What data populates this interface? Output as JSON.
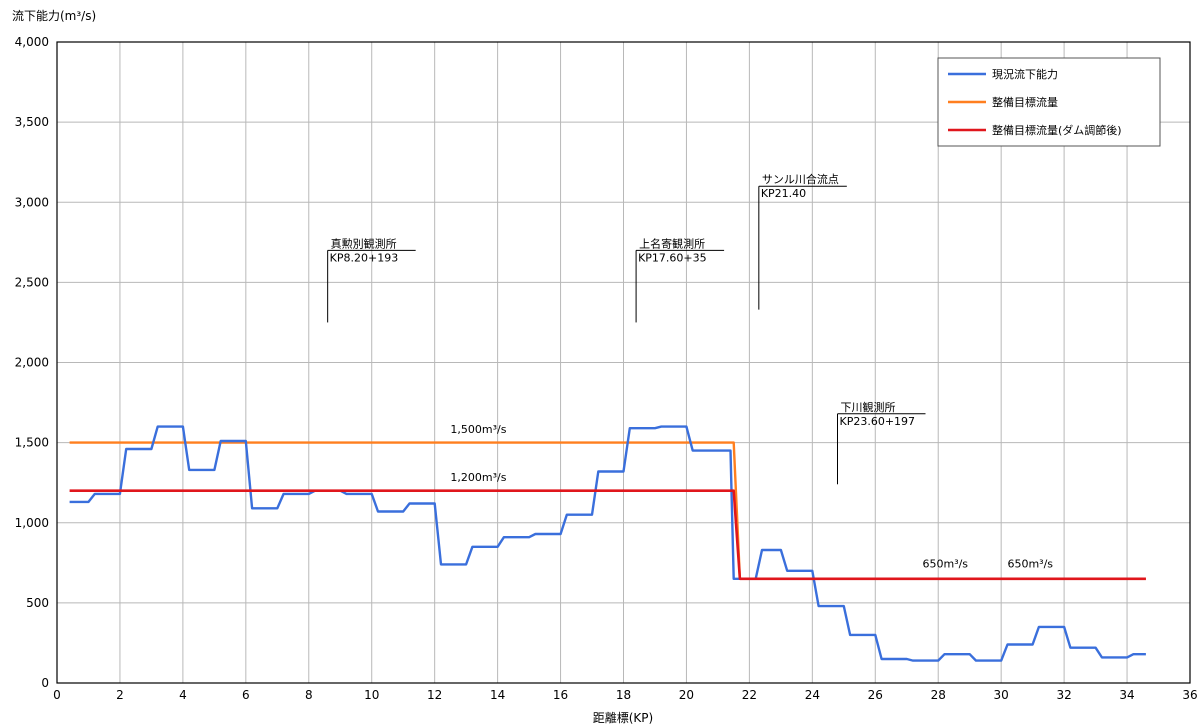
{
  "chart_data": {
    "type": "line",
    "ylabel": "流下能力(m³/s)",
    "xlabel": "距離標(KP)",
    "xlim": [
      0,
      36
    ],
    "ylim": [
      0,
      4000
    ],
    "x_ticks": [
      0,
      2,
      4,
      6,
      8,
      10,
      12,
      14,
      16,
      18,
      20,
      22,
      24,
      26,
      28,
      30,
      32,
      34,
      36
    ],
    "y_ticks": [
      0,
      500,
      1000,
      1500,
      2000,
      2500,
      3000,
      3500,
      4000
    ],
    "y_tick_labels": [
      "0",
      "500",
      "1,000",
      "1,500",
      "2,000",
      "2,500",
      "3,000",
      "3,500",
      "4,000"
    ],
    "grid": true,
    "legend": "top-right",
    "series": [
      {
        "name": "現況流下能力",
        "color": "#3a6fdc",
        "x": [
          0.4,
          1.0,
          1.2,
          2.0,
          2.2,
          3.0,
          3.2,
          4.0,
          4.2,
          5.0,
          5.2,
          6.0,
          6.2,
          7.0,
          7.2,
          8.0,
          8.2,
          9.0,
          9.2,
          10.0,
          10.2,
          11.0,
          11.2,
          12.0,
          12.2,
          13.0,
          13.2,
          14.0,
          14.2,
          15.0,
          15.2,
          16.0,
          16.2,
          17.0,
          17.2,
          18.0,
          18.2,
          19.0,
          19.2,
          20.0,
          20.2,
          21.0,
          21.4,
          21.5,
          21.7,
          22.2,
          22.4,
          23.0,
          23.2,
          24.0,
          24.2,
          25.0,
          25.2,
          26.0,
          26.2,
          27.0,
          27.2,
          28.0,
          28.2,
          29.0,
          29.2,
          30.0,
          30.2,
          31.0,
          31.2,
          32.0,
          32.2,
          33.0,
          33.2,
          34.0,
          34.2,
          34.6
        ],
        "y": [
          1130,
          1130,
          1180,
          1180,
          1460,
          1460,
          1600,
          1600,
          1330,
          1330,
          1510,
          1510,
          1090,
          1090,
          1180,
          1180,
          1200,
          1200,
          1180,
          1180,
          1070,
          1070,
          1120,
          1120,
          740,
          740,
          850,
          850,
          910,
          910,
          930,
          930,
          1050,
          1050,
          1320,
          1320,
          1590,
          1590,
          1600,
          1600,
          1450,
          1450,
          1450,
          650,
          650,
          650,
          830,
          830,
          700,
          700,
          480,
          480,
          300,
          300,
          150,
          150,
          140,
          140,
          180,
          180,
          140,
          140,
          240,
          240,
          350,
          350,
          220,
          220,
          160,
          160,
          180,
          180
        ]
      },
      {
        "name": "整備目標流量",
        "color": "#ff7f1f",
        "x": [
          0.4,
          21.5,
          21.7,
          34.6
        ],
        "y": [
          1500,
          1500,
          650,
          650
        ]
      },
      {
        "name": "整備目標流量(ダム調節後)",
        "color": "#e0161c",
        "x": [
          0.4,
          21.5,
          21.7,
          34.6
        ],
        "y": [
          1200,
          1200,
          650,
          650
        ]
      }
    ],
    "annotations": [
      {
        "line1": "真勲別観測所",
        "line2": "KP8.20+193",
        "x": 8.6,
        "y_top": 2700,
        "y_bottom": 2250
      },
      {
        "line1": "上名寄観測所",
        "line2": "KP17.60+35",
        "x": 18.4,
        "y_top": 2700,
        "y_bottom": 2250
      },
      {
        "line1": "サンル川合流点",
        "line2": "KP21.40",
        "x": 22.3,
        "y_top": 3100,
        "y_bottom": 2330
      },
      {
        "line1": "下川観測所",
        "line2": "KP23.60+197",
        "x": 24.8,
        "y_top": 1680,
        "y_bottom": 1240
      }
    ],
    "value_labels": [
      {
        "text": "1,500m³/s",
        "x": 12.5,
        "y": 1560
      },
      {
        "text": "1,200m³/s",
        "x": 12.5,
        "y": 1260
      },
      {
        "text": "650m³/s",
        "x": 27.5,
        "y": 720
      },
      {
        "text": "650m³/s",
        "x": 30.2,
        "y": 720
      }
    ]
  }
}
